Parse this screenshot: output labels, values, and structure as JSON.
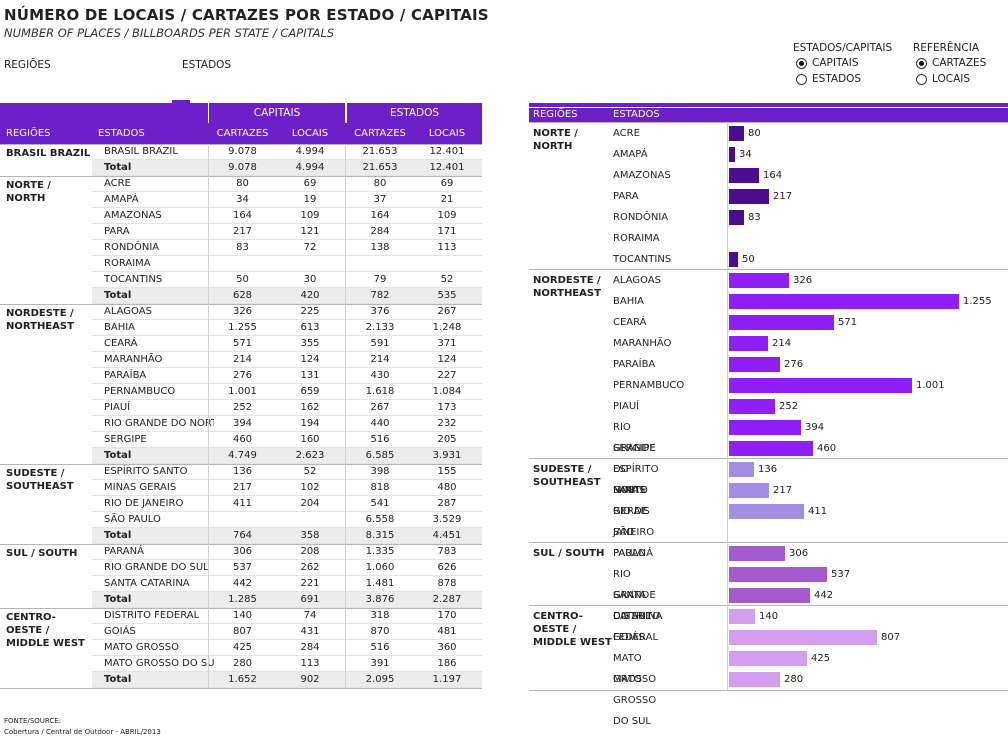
{
  "header": {
    "title": "NÚMERO DE LOCAIS / CARTAZES POR ESTADO / CAPITAIS",
    "subtitle": "NUMBER OF PLACES / BILLBOARDS PER STATE / CAPITALS"
  },
  "filters": {
    "regioes_label": "REGIÕES",
    "estados_label": "ESTADOS",
    "estados_capitais": {
      "label": "ESTADOS/CAPITAIS",
      "options": [
        "CAPITAIS",
        "ESTADOS"
      ],
      "selected": "CAPITAIS"
    },
    "referencia": {
      "label": "REFERÊNCIA",
      "options": [
        "CARTAZES",
        "LOCAIS"
      ],
      "selected": "CARTAZES"
    }
  },
  "table": {
    "group_headers": {
      "capitais": "CAPITAIS",
      "estados": "ESTADOS"
    },
    "columns": [
      "REGIÕES",
      "ESTADOS",
      "CARTAZES",
      "LOCAIS",
      "CARTAZES",
      "LOCAIS"
    ],
    "regions": [
      {
        "name": "BRASIL BRAZIL",
        "rows": [
          [
            "BRASIL BRAZIL",
            "9.078",
            "4.994",
            "21.653",
            "12.401"
          ],
          [
            "Total",
            "9.078",
            "4.994",
            "21.653",
            "12.401"
          ]
        ]
      },
      {
        "name": "NORTE / NORTH",
        "rows": [
          [
            "ACRE",
            "80",
            "69",
            "80",
            "69"
          ],
          [
            "AMAPÁ",
            "34",
            "19",
            "37",
            "21"
          ],
          [
            "AMAZONAS",
            "164",
            "109",
            "164",
            "109"
          ],
          [
            "PARA",
            "217",
            "121",
            "284",
            "171"
          ],
          [
            "RONDÔNIA",
            "83",
            "72",
            "138",
            "113"
          ],
          [
            "RORAIMA",
            "",
            "",
            "",
            ""
          ],
          [
            "TOCANTINS",
            "50",
            "30",
            "79",
            "52"
          ],
          [
            "Total",
            "628",
            "420",
            "782",
            "535"
          ]
        ]
      },
      {
        "name": "NORDESTE / NORTHEAST",
        "rows": [
          [
            "ALAGOAS",
            "326",
            "225",
            "376",
            "267"
          ],
          [
            "BAHIA",
            "1.255",
            "613",
            "2.133",
            "1.248"
          ],
          [
            "CEARÁ",
            "571",
            "355",
            "591",
            "371"
          ],
          [
            "MARANHÃO",
            "214",
            "124",
            "214",
            "124"
          ],
          [
            "PARAÍBA",
            "276",
            "131",
            "430",
            "227"
          ],
          [
            "PERNAMBUCO",
            "1.001",
            "659",
            "1.618",
            "1.084"
          ],
          [
            "PIAUÍ",
            "252",
            "162",
            "267",
            "173"
          ],
          [
            "RIO GRANDE DO NORTE",
            "394",
            "194",
            "440",
            "232"
          ],
          [
            "SERGIPE",
            "460",
            "160",
            "516",
            "205"
          ],
          [
            "Total",
            "4.749",
            "2.623",
            "6.585",
            "3.931"
          ]
        ]
      },
      {
        "name": "SUDESTE / SOUTHEAST",
        "rows": [
          [
            "ESPÍRITO SANTO",
            "136",
            "52",
            "398",
            "155"
          ],
          [
            "MINAS GERAIS",
            "217",
            "102",
            "818",
            "480"
          ],
          [
            "RIO DE JANEIRO",
            "411",
            "204",
            "541",
            "287"
          ],
          [
            "SÃO PAULO",
            "",
            "",
            "6.558",
            "3.529"
          ],
          [
            "Total",
            "764",
            "358",
            "8.315",
            "4.451"
          ]
        ]
      },
      {
        "name": "SUL / SOUTH",
        "rows": [
          [
            "PARANÁ",
            "306",
            "208",
            "1.335",
            "783"
          ],
          [
            "RIO GRANDE DO SUL",
            "537",
            "262",
            "1.060",
            "626"
          ],
          [
            "SANTA CATARINA",
            "442",
            "221",
            "1.481",
            "878"
          ],
          [
            "Total",
            "1.285",
            "691",
            "3.876",
            "2.287"
          ]
        ]
      },
      {
        "name": "CENTRO-OESTE / MIDDLE WEST",
        "rows": [
          [
            "DISTRITO FEDERAL",
            "140",
            "74",
            "318",
            "170"
          ],
          [
            "GOIÁS",
            "807",
            "431",
            "870",
            "481"
          ],
          [
            "MATO GROSSO",
            "425",
            "284",
            "516",
            "360"
          ],
          [
            "MATO GROSSO DO SUL",
            "280",
            "113",
            "391",
            "186"
          ],
          [
            "Total",
            "1.652",
            "902",
            "2.095",
            "1.197"
          ]
        ]
      }
    ]
  },
  "chart_data": {
    "type": "bar",
    "orientation": "horizontal",
    "headers": {
      "regioes": "REGIÕES",
      "estados": "ESTADOS"
    },
    "groups": [
      {
        "region": "NORTE / NORTH",
        "color": "#4a0d8c",
        "bars": [
          {
            "label": "ACRE",
            "value": 80,
            "text": "80"
          },
          {
            "label": "AMAPÁ",
            "value": 34,
            "text": "34"
          },
          {
            "label": "AMAZONAS",
            "value": 164,
            "text": "164"
          },
          {
            "label": "PARA",
            "value": 217,
            "text": "217"
          },
          {
            "label": "RONDÔNIA",
            "value": 83,
            "text": "83"
          },
          {
            "label": "RORAIMA",
            "value": null,
            "text": ""
          },
          {
            "label": "TOCANTINS",
            "value": 50,
            "text": "50"
          }
        ]
      },
      {
        "region": "NORDESTE / NORTHEAST",
        "color": "#8f1ff2",
        "bars": [
          {
            "label": "ALAGOAS",
            "value": 326,
            "text": "326"
          },
          {
            "label": "BAHIA",
            "value": 1255,
            "text": "1.255"
          },
          {
            "label": "CEARÁ",
            "value": 571,
            "text": "571"
          },
          {
            "label": "MARANHÃO",
            "value": 214,
            "text": "214"
          },
          {
            "label": "PARAÍBA",
            "value": 276,
            "text": "276"
          },
          {
            "label": "PERNAMBUCO",
            "value": 1001,
            "text": "1.001"
          },
          {
            "label": "PIAUÍ",
            "value": 252,
            "text": "252"
          },
          {
            "label": "RIO GRANDE DO NORTE",
            "value": 394,
            "text": "394"
          },
          {
            "label": "SERGIPE",
            "value": 460,
            "text": "460"
          }
        ]
      },
      {
        "region": "SUDESTE / SOUTHEAST",
        "color": "#a48ee4",
        "bars": [
          {
            "label": "ESPÍRITO SANTO",
            "value": 136,
            "text": "136"
          },
          {
            "label": "MINAS GERAIS",
            "value": 217,
            "text": "217"
          },
          {
            "label": "RIO DE JANEIRO",
            "value": 411,
            "text": "411"
          },
          {
            "label": "SÃO PAULO",
            "value": null,
            "text": ""
          }
        ]
      },
      {
        "region": "SUL / SOUTH",
        "color": "#a65ad0",
        "bars": [
          {
            "label": "PARANÁ",
            "value": 306,
            "text": "306"
          },
          {
            "label": "RIO GRANDE DO SUL",
            "value": 537,
            "text": "537"
          },
          {
            "label": "SANTA CATARINA",
            "value": 442,
            "text": "442"
          }
        ]
      },
      {
        "region": "CENTRO-OESTE / MIDDLE WEST",
        "color": "#d39df0",
        "bars": [
          {
            "label": "DISTRITO FEDERAL",
            "value": 140,
            "text": "140"
          },
          {
            "label": "GOIÁS",
            "value": 807,
            "text": "807"
          },
          {
            "label": "MATO GROSSO",
            "value": 425,
            "text": "425"
          },
          {
            "label": "MATO GROSSO DO SUL",
            "value": 280,
            "text": "280"
          }
        ]
      }
    ],
    "xlim": [
      0,
      1255
    ],
    "grid": false
  },
  "footer": {
    "source_label": "FONTE/SOURCE:",
    "source_text": "Cobertura / Central de Outdoor - ABRIL/2013"
  }
}
